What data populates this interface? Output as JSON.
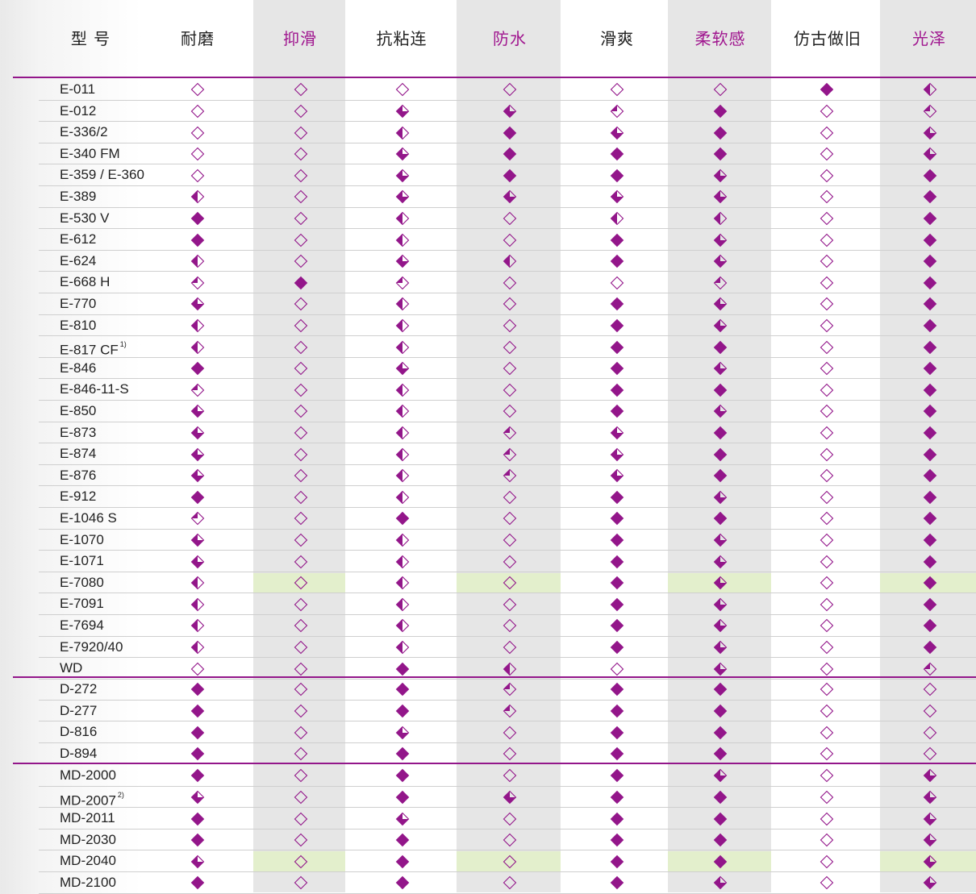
{
  "header": {
    "model_label": "型 号",
    "columns": [
      {
        "label": "耐磨",
        "accent": false
      },
      {
        "label": "抑滑",
        "accent": true
      },
      {
        "label": "抗粘连",
        "accent": false
      },
      {
        "label": "防水",
        "accent": true
      },
      {
        "label": "滑爽",
        "accent": false
      },
      {
        "label": "柔软感",
        "accent": true
      },
      {
        "label": "仿古做旧",
        "accent": false
      },
      {
        "label": "光泽",
        "accent": true
      }
    ]
  },
  "colors": {
    "accent": "#93168a",
    "header_accent_text": "#a0168f",
    "highlight": "#e3efcc",
    "column_shade": "#e6e6e6"
  },
  "symbol_legend": {
    "0": "empty-diamond",
    "1": "quarter-filled-diamond",
    "2": "half-filled-diamond",
    "3": "three-quarter-filled-diamond",
    "4": "full-diamond"
  },
  "groups": [
    {
      "rows": [
        {
          "model": "E-011",
          "sup": "",
          "ratings": [
            0,
            0,
            0,
            0,
            0,
            0,
            4,
            2
          ],
          "highlight": []
        },
        {
          "model": "E-012",
          "sup": "",
          "ratings": [
            0,
            0,
            3,
            3,
            1,
            4,
            0,
            1
          ],
          "highlight": []
        },
        {
          "model": "E-336/2",
          "sup": "",
          "ratings": [
            0,
            0,
            2,
            4,
            3,
            4,
            0,
            3
          ],
          "highlight": []
        },
        {
          "model": "E-340 FM",
          "sup": "",
          "ratings": [
            0,
            0,
            3,
            4,
            4,
            4,
            0,
            3
          ],
          "highlight": []
        },
        {
          "model": "E-359 / E-360",
          "sup": "",
          "ratings": [
            0,
            0,
            3,
            4,
            4,
            3,
            0,
            4
          ],
          "highlight": []
        },
        {
          "model": "E-389",
          "sup": "",
          "ratings": [
            2,
            0,
            3,
            3,
            3,
            3,
            0,
            4
          ],
          "highlight": []
        },
        {
          "model": "E-530 V",
          "sup": "",
          "ratings": [
            4,
            0,
            2,
            0,
            2,
            2,
            0,
            4
          ],
          "highlight": []
        },
        {
          "model": "E-612",
          "sup": "",
          "ratings": [
            4,
            0,
            2,
            0,
            4,
            3,
            0,
            4
          ],
          "highlight": []
        },
        {
          "model": "E-624",
          "sup": "",
          "ratings": [
            2,
            0,
            3,
            2,
            4,
            3,
            0,
            4
          ],
          "highlight": []
        },
        {
          "model": "E-668 H",
          "sup": "",
          "ratings": [
            1,
            4,
            1,
            0,
            0,
            1,
            0,
            4
          ],
          "highlight": []
        },
        {
          "model": "E-770",
          "sup": "",
          "ratings": [
            3,
            0,
            2,
            0,
            4,
            3,
            0,
            4
          ],
          "highlight": []
        },
        {
          "model": "E-810",
          "sup": "",
          "ratings": [
            2,
            0,
            2,
            0,
            4,
            3,
            0,
            4
          ],
          "highlight": []
        },
        {
          "model": "E-817 CF",
          "sup": "1)",
          "ratings": [
            2,
            0,
            2,
            0,
            4,
            4,
            0,
            4
          ],
          "highlight": []
        },
        {
          "model": "E-846",
          "sup": "",
          "ratings": [
            4,
            0,
            3,
            0,
            4,
            3,
            0,
            4
          ],
          "highlight": []
        },
        {
          "model": "E-846-11-S",
          "sup": "",
          "ratings": [
            1,
            0,
            2,
            0,
            4,
            4,
            0,
            4
          ],
          "highlight": []
        },
        {
          "model": "E-850",
          "sup": "",
          "ratings": [
            3,
            0,
            2,
            0,
            4,
            3,
            0,
            4
          ],
          "highlight": []
        },
        {
          "model": "E-873",
          "sup": "",
          "ratings": [
            3,
            0,
            2,
            1,
            3,
            4,
            0,
            4
          ],
          "highlight": []
        },
        {
          "model": "E-874",
          "sup": "",
          "ratings": [
            3,
            0,
            2,
            1,
            3,
            4,
            0,
            4
          ],
          "highlight": []
        },
        {
          "model": "E-876",
          "sup": "",
          "ratings": [
            3,
            0,
            2,
            1,
            3,
            4,
            0,
            4
          ],
          "highlight": []
        },
        {
          "model": "E-912",
          "sup": "",
          "ratings": [
            4,
            0,
            2,
            0,
            4,
            3,
            0,
            4
          ],
          "highlight": []
        },
        {
          "model": "E-1046 S",
          "sup": "",
          "ratings": [
            1,
            0,
            4,
            0,
            4,
            4,
            0,
            4
          ],
          "highlight": []
        },
        {
          "model": "E-1070",
          "sup": "",
          "ratings": [
            3,
            0,
            2,
            0,
            4,
            3,
            0,
            4
          ],
          "highlight": []
        },
        {
          "model": "E-1071",
          "sup": "",
          "ratings": [
            3,
            0,
            2,
            0,
            4,
            3,
            0,
            4
          ],
          "highlight": []
        },
        {
          "model": "E-7080",
          "sup": "",
          "ratings": [
            2,
            0,
            2,
            0,
            4,
            3,
            0,
            4
          ],
          "highlight": [
            1,
            3,
            5,
            7
          ]
        },
        {
          "model": "E-7091",
          "sup": "",
          "ratings": [
            2,
            0,
            2,
            0,
            4,
            3,
            0,
            4
          ],
          "highlight": []
        },
        {
          "model": "E-7694",
          "sup": "",
          "ratings": [
            2,
            0,
            2,
            0,
            4,
            3,
            0,
            4
          ],
          "highlight": []
        },
        {
          "model": "E-7920/40",
          "sup": "",
          "ratings": [
            2,
            0,
            2,
            0,
            4,
            3,
            0,
            4
          ],
          "highlight": []
        },
        {
          "model": "WD",
          "sup": "",
          "ratings": [
            0,
            0,
            4,
            2,
            0,
            3,
            0,
            1
          ],
          "highlight": []
        }
      ]
    },
    {
      "rows": [
        {
          "model": "D-272",
          "sup": "",
          "ratings": [
            4,
            0,
            4,
            1,
            4,
            4,
            0,
            0
          ],
          "highlight": []
        },
        {
          "model": "D-277",
          "sup": "",
          "ratings": [
            4,
            0,
            4,
            1,
            4,
            4,
            0,
            0
          ],
          "highlight": []
        },
        {
          "model": "D-816",
          "sup": "",
          "ratings": [
            4,
            0,
            3,
            0,
            4,
            4,
            0,
            0
          ],
          "highlight": []
        },
        {
          "model": "D-894",
          "sup": "",
          "ratings": [
            4,
            0,
            4,
            0,
            4,
            4,
            0,
            0
          ],
          "highlight": []
        }
      ]
    },
    {
      "rows": [
        {
          "model": "MD-2000",
          "sup": "",
          "ratings": [
            4,
            0,
            4,
            0,
            4,
            3,
            0,
            3
          ],
          "highlight": []
        },
        {
          "model": "MD-2007",
          "sup": "2)",
          "ratings": [
            3,
            0,
            4,
            3,
            4,
            4,
            0,
            3
          ],
          "highlight": []
        },
        {
          "model": "MD-2011",
          "sup": "",
          "ratings": [
            4,
            0,
            3,
            0,
            4,
            4,
            0,
            3
          ],
          "highlight": []
        },
        {
          "model": "MD-2030",
          "sup": "",
          "ratings": [
            4,
            0,
            4,
            0,
            4,
            4,
            0,
            3
          ],
          "highlight": []
        },
        {
          "model": "MD-2040",
          "sup": "",
          "ratings": [
            3,
            0,
            4,
            0,
            4,
            4,
            0,
            3
          ],
          "highlight": [
            1,
            3,
            5,
            7
          ]
        },
        {
          "model": "MD-2100",
          "sup": "",
          "ratings": [
            4,
            0,
            4,
            0,
            4,
            3,
            0,
            3
          ],
          "highlight": []
        }
      ]
    }
  ]
}
